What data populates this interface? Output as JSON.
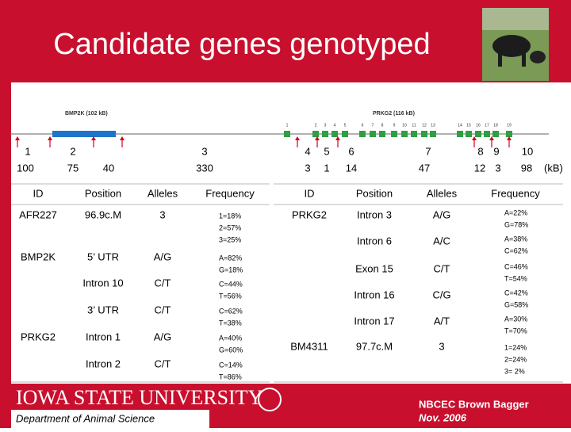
{
  "header": {
    "title": "Candidate genes genotyped"
  },
  "map": {
    "genes": [
      {
        "label": "BMP2K (102 kB)"
      },
      {
        "label": "PRKG2 (116 kB)"
      }
    ],
    "exons": [
      1,
      2,
      3,
      4,
      5,
      6,
      7,
      8,
      9,
      10,
      11,
      12,
      13,
      14,
      15,
      16,
      17,
      18,
      19
    ],
    "markers": [
      1,
      2,
      3,
      4,
      5,
      6,
      7,
      8,
      9,
      10
    ],
    "distances": [
      100,
      75,
      40,
      330,
      3,
      1,
      14,
      47,
      12,
      3,
      98
    ],
    "unit": "(kB)"
  },
  "tables": [
    {
      "columns": [
        "ID",
        "Position",
        "Alleles",
        "Frequency"
      ],
      "rows": [
        [
          "AFR227",
          "96.9c.M",
          "3",
          [
            "1=18%",
            "2=57%",
            "3=25%"
          ]
        ],
        [
          "BMP2K",
          "5’ UTR",
          "A/G",
          [
            "A=82%",
            "G=18%"
          ]
        ],
        [
          null,
          "Intron 10",
          "C/T",
          [
            "C=44%",
            "T=56%"
          ]
        ],
        [
          null,
          "3’ UTR",
          "C/T",
          [
            "C=62%",
            "T=38%"
          ]
        ],
        [
          "PRKG2",
          "Intron 1",
          "A/G",
          [
            "A=40%",
            "G=60%"
          ]
        ],
        [
          null,
          "Intron 2",
          "C/T",
          [
            "C=14%",
            "T=86%"
          ]
        ]
      ]
    },
    {
      "columns": [
        "ID",
        "Position",
        "Alleles",
        "Frequency"
      ],
      "rows": [
        [
          "PRKG2",
          "Intron 3",
          "A/G",
          [
            "A=22%",
            "G=78%"
          ]
        ],
        [
          null,
          "Intron 6",
          "A/C",
          [
            "A=38%",
            "C=62%"
          ]
        ],
        [
          null,
          "Exon 15",
          "C/T",
          [
            "C=46%",
            "T=54%"
          ]
        ],
        [
          null,
          "Intron 16",
          "C/G",
          [
            "C=42%",
            "G=58%"
          ]
        ],
        [
          null,
          "Intron 17",
          "A/T",
          [
            "A=30%",
            "T=70%"
          ]
        ],
        [
          "BM4311",
          "97.7c.M",
          "3",
          [
            "1=24%",
            "2=24%",
            "3= 2%"
          ]
        ]
      ]
    }
  ],
  "footer": {
    "university": "IOWA STATE UNIVERSITY",
    "department": "Department of Animal Science",
    "event": "NBCEC Brown Bagger",
    "date": "Nov. 2006"
  }
}
